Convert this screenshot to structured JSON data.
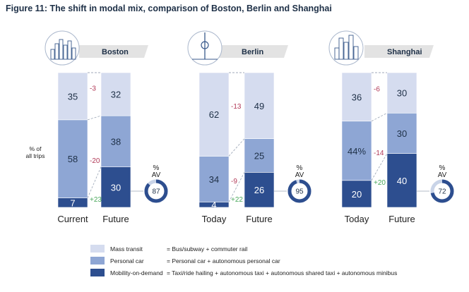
{
  "title": "Figure 11: The shift in modal mix, comparison of Boston, Berlin and Shanghai",
  "colors": {
    "mass_transit": "#d5dcef",
    "personal_car": "#8ea6d4",
    "mobility_on_demand": "#2d4e8f",
    "banner": "#e3e3e3",
    "neg_delta": "#b23a58",
    "pos_delta": "#4aa85c",
    "dark_text": "#1e3047"
  },
  "legend": [
    {
      "label": "Mass transit",
      "description": "= Bus/subway + commuter rail"
    },
    {
      "label": "Personal car",
      "description": "= Personal car + autonomous personal car"
    },
    {
      "label": "Mobility-on-demand",
      "description": "= Taxi/ride hailing + autonomous taxi + autonomous shared taxi + autonomous minibus"
    }
  ],
  "chart_data": [
    {
      "type": "bar",
      "stacked": true,
      "city": "Boston",
      "categories": [
        "Current",
        "Future"
      ],
      "ylabel": "% of all trips",
      "series": [
        {
          "name": "Mobility-on-demand",
          "values": [
            7,
            30
          ],
          "labels": [
            "7",
            "30"
          ]
        },
        {
          "name": "Personal car",
          "values": [
            58,
            38
          ],
          "labels": [
            "58",
            "38"
          ]
        },
        {
          "name": "Mass transit",
          "values": [
            35,
            32
          ],
          "labels": [
            "35",
            "32"
          ]
        }
      ],
      "deltas": [
        "+23",
        "-20",
        "-3"
      ],
      "av_title": "%\nAV",
      "av_value": "87",
      "av_percent": 87
    },
    {
      "type": "bar",
      "stacked": true,
      "city": "Berlin",
      "categories": [
        "Today",
        "Future"
      ],
      "series": [
        {
          "name": "Mobility-on-demand",
          "values": [
            4,
            26
          ],
          "labels": [
            "4",
            "26"
          ]
        },
        {
          "name": "Personal car",
          "values": [
            34,
            25
          ],
          "labels": [
            "34",
            "25"
          ]
        },
        {
          "name": "Mass transit",
          "values": [
            62,
            49
          ],
          "labels": [
            "62",
            "49"
          ]
        }
      ],
      "deltas": [
        "+22",
        "-9",
        "-13"
      ],
      "av_title": "%\nAV",
      "av_value": "95",
      "av_percent": 95
    },
    {
      "type": "bar",
      "stacked": true,
      "city": "Shanghai",
      "categories": [
        "Today",
        "Future"
      ],
      "series": [
        {
          "name": "Mobility-on-demand",
          "values": [
            20,
            40
          ],
          "labels": [
            "20",
            "40"
          ]
        },
        {
          "name": "Personal car",
          "values": [
            44,
            30
          ],
          "labels": [
            "44%",
            "30"
          ]
        },
        {
          "name": "Mass transit",
          "values": [
            36,
            30
          ],
          "labels": [
            "36",
            "30"
          ]
        }
      ],
      "deltas": [
        "+20",
        "-14",
        "-6"
      ],
      "av_title": "%\nAV",
      "av_value": "72",
      "av_percent": 72
    }
  ]
}
